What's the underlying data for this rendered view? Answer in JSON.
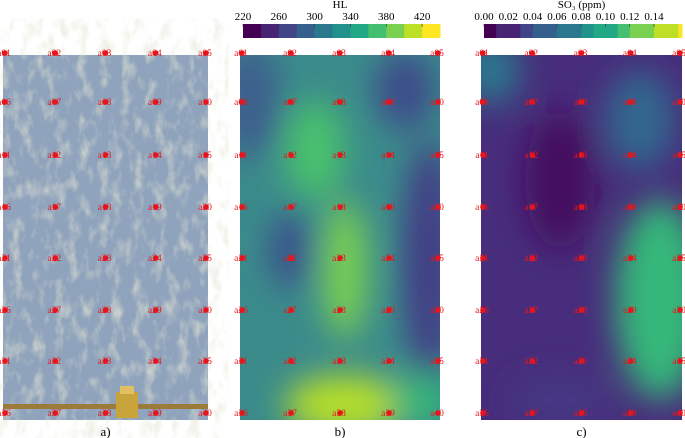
{
  "panels": [
    {
      "caption": "a)"
    },
    {
      "caption": "b)",
      "colorbar": {
        "title": "HL",
        "lim": [
          220,
          440
        ],
        "ticks": [
          220,
          260,
          300,
          340,
          380,
          420
        ]
      }
    },
    {
      "caption": "c)",
      "colorbar": {
        "title": "SO₃ (ppm)",
        "lim": [
          0,
          0.163
        ],
        "ticks": [
          {
            "value": 0,
            "label": "0.00"
          },
          {
            "value": 0.02,
            "label": "0.02"
          },
          {
            "value": 0.04,
            "label": "0.04"
          },
          {
            "value": 0.06,
            "label": "0.06"
          },
          {
            "value": 0.08,
            "label": "0.08"
          },
          {
            "value": 0.1,
            "label": "0.10"
          },
          {
            "value": 0.12,
            "label": "0.12"
          },
          {
            "value": 0.14,
            "label": "0.14"
          }
        ]
      }
    }
  ],
  "points": [
    "a01",
    "a02",
    "a03",
    "a04",
    "a05",
    "a06",
    "a07",
    "a08",
    "a09",
    "a10",
    "a11",
    "a12",
    "a13",
    "a14",
    "a15",
    "a16",
    "a17",
    "a18",
    "a19",
    "a20",
    "a21",
    "a22",
    "a23",
    "a24",
    "a25",
    "a26",
    "a27",
    "a28",
    "a29",
    "a30",
    "a31",
    "a32",
    "a33",
    "a34",
    "a35",
    "a36",
    "a37",
    "a38",
    "a39",
    "a40"
  ]
}
